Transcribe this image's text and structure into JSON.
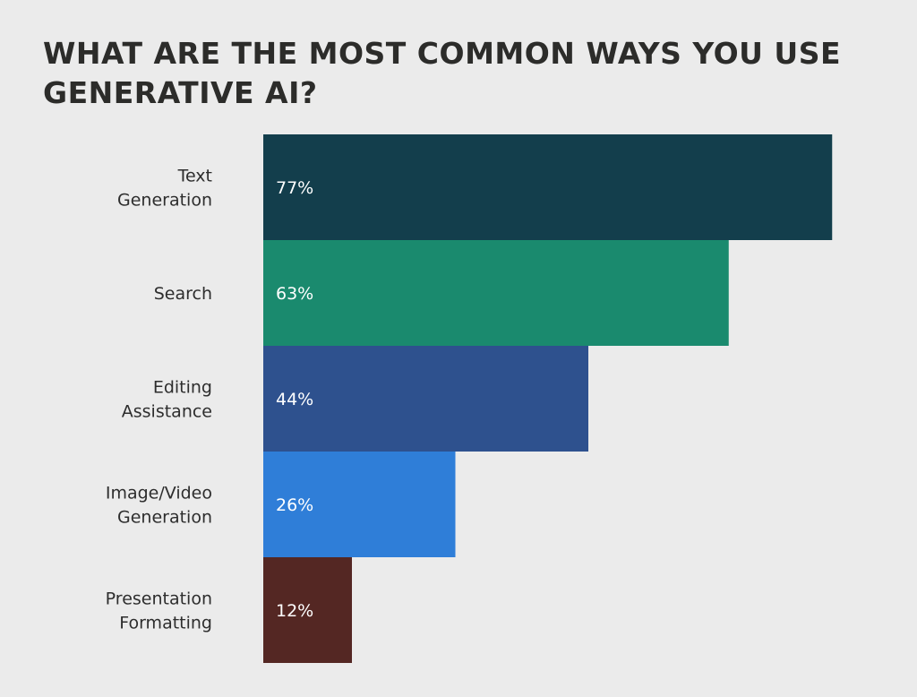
{
  "chart_data": {
    "type": "bar",
    "orientation": "horizontal",
    "title": "WHAT ARE THE MOST COMMON WAYS YOU USE GENERATIVE AI?",
    "categories": [
      [
        "Text",
        "Generation"
      ],
      [
        "Search"
      ],
      [
        "Editing",
        "Assistance"
      ],
      [
        "Image/Video",
        "Generation"
      ],
      [
        "Presentation",
        "Formatting"
      ]
    ],
    "values": [
      77,
      63,
      44,
      26,
      12
    ],
    "value_labels": [
      "77%",
      "63%",
      "44%",
      "26%",
      "12%"
    ],
    "colors": [
      "#133e4c",
      "#1a8a6e",
      "#2e518e",
      "#2f7ed8",
      "#542723"
    ],
    "unit": "%",
    "grid": false,
    "legend": "none"
  }
}
